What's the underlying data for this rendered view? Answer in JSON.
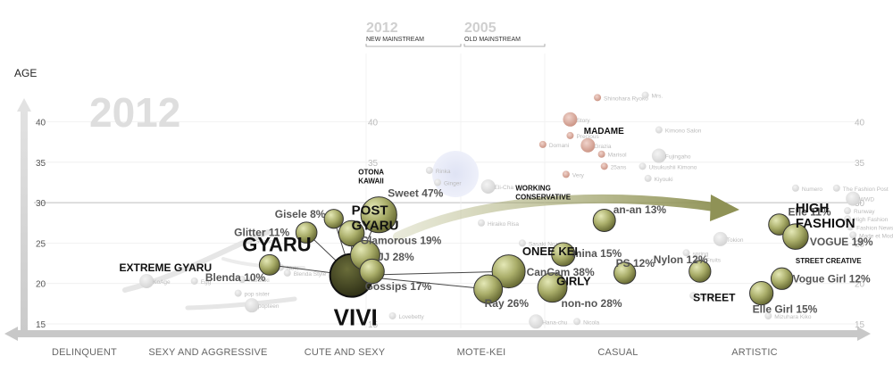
{
  "chart_data": {
    "type": "scatter",
    "y_axis": {
      "label": "AGE",
      "ticks": [
        15,
        20,
        25,
        30,
        35,
        40
      ]
    },
    "x_categories": [
      "DELINQUENT",
      "SEXY AND AGGRESSIVE",
      "CUTE AND SEXY",
      "MOTE-KEI",
      "CASUAL",
      "ARTISTIC"
    ],
    "year_watermark": "2012",
    "columns": [
      {
        "year": "2012",
        "label": "NEW MAINSTREAM"
      },
      {
        "year": "2005",
        "label": "OLD MAINSTREAM"
      }
    ],
    "segments": [
      {
        "label": "GYARU",
        "x": 1.25,
        "y": 24
      },
      {
        "label": "EXTREME GYARU",
        "x": 0.35,
        "y": 21.5
      },
      {
        "label": "POST GYARU",
        "x": 2.05,
        "y": 28.5
      },
      {
        "label": "OTONA KAWAII",
        "x": 2.1,
        "y": 33.5
      },
      {
        "label": "WORKING CONSERVATIVE",
        "x": 3.25,
        "y": 31.5
      },
      {
        "label": "ONEE KEI",
        "x": 3.3,
        "y": 23.5
      },
      {
        "label": "GIRLY",
        "x": 3.55,
        "y": 19.8
      },
      {
        "label": "MADAME",
        "x": 3.75,
        "y": 38.5
      },
      {
        "label": "STREET",
        "x": 4.55,
        "y": 17.8
      },
      {
        "label": "STREET CREATIVE",
        "x": 5.3,
        "y": 22.5
      },
      {
        "label": "HIGH FASHION",
        "x": 5.3,
        "y": 28.8
      }
    ],
    "magazines": [
      {
        "name": "VIVI",
        "share": 35,
        "x": 2.05,
        "y": 21,
        "text": "VIVI"
      },
      {
        "name": "Sweet",
        "share": 47,
        "x": 2.25,
        "y": 28.5,
        "text": "Sweet 47%"
      },
      {
        "name": "Gisele",
        "share": 8,
        "x": 1.92,
        "y": 28.0,
        "text": "Gisele 8%"
      },
      {
        "name": "Glitter",
        "share": 11,
        "x": 1.72,
        "y": 26.3,
        "text": "Glitter 11%"
      },
      {
        "name": "Glamorous",
        "share": 19,
        "x": 2.05,
        "y": 26.2,
        "text": "Glamorous 19%"
      },
      {
        "name": "JJ",
        "share": 28,
        "x": 2.15,
        "y": 23.5,
        "text": "JJ 28%"
      },
      {
        "name": "Gossips",
        "share": 17,
        "x": 2.2,
        "y": 21.5,
        "text": "Gossips 17%"
      },
      {
        "name": "Blenda",
        "share": 10,
        "x": 1.45,
        "y": 22.3,
        "text": "Blenda 10%"
      },
      {
        "name": "CanCam",
        "share": 38,
        "x": 3.2,
        "y": 21.5,
        "text": "CanCam 38%"
      },
      {
        "name": "Ray",
        "share": 26,
        "x": 3.05,
        "y": 19.3,
        "text": "Ray 26%"
      },
      {
        "name": "non-no",
        "share": 28,
        "x": 3.52,
        "y": 19.5,
        "text": "non-no 28%"
      },
      {
        "name": "mina",
        "share": 15,
        "x": 3.6,
        "y": 23.6,
        "text": "mina 15%"
      },
      {
        "name": "an-an",
        "share": 13,
        "x": 3.9,
        "y": 27.8,
        "text": "an-an 13%"
      },
      {
        "name": "PS",
        "share": 12,
        "x": 4.05,
        "y": 21.3,
        "text": "PS 12%"
      },
      {
        "name": "Nylon",
        "share": 12,
        "x": 4.6,
        "y": 21.5,
        "text": "Nylon 12%"
      },
      {
        "name": "Elle",
        "share": 11,
        "x": 5.18,
        "y": 27.3,
        "text": "Elle 11%"
      },
      {
        "name": "VOGUE",
        "share": 19,
        "x": 5.3,
        "y": 25.8,
        "text": "VOGUE 19%"
      },
      {
        "name": "Vogue Girl",
        "share": 12,
        "x": 5.2,
        "y": 20.6,
        "text": "Vogue Girl 12%"
      },
      {
        "name": "Elle Girl",
        "share": 15,
        "x": 5.05,
        "y": 18.8,
        "text": "Elle Girl 15%"
      }
    ],
    "faded_magazines": [
      {
        "name": "KoAge",
        "x": 0.55,
        "y": 20.3
      },
      {
        "name": "Egg",
        "x": 0.9,
        "y": 20.3
      },
      {
        "name": "SCawaii",
        "x": 1.3,
        "y": 25.3
      },
      {
        "name": "Ranzuki",
        "x": 1.25,
        "y": 20.5
      },
      {
        "name": "pop sister",
        "x": 1.22,
        "y": 18.8
      },
      {
        "name": "popteen",
        "x": 1.32,
        "y": 17.3
      },
      {
        "name": "Nuts",
        "x": 1.53,
        "y": 22.0
      },
      {
        "name": "Blenda Style",
        "x": 1.58,
        "y": 21.3
      },
      {
        "name": "Rinka",
        "x": 2.62,
        "y": 34.0
      },
      {
        "name": "Ginger",
        "x": 2.68,
        "y": 32.5
      },
      {
        "name": "Story",
        "x": 3.65,
        "y": 40.3
      },
      {
        "name": "Shinohara Ryoko",
        "x": 3.85,
        "y": 43.0
      },
      {
        "name": "Mrs.",
        "x": 4.2,
        "y": 43.3
      },
      {
        "name": "Precious",
        "x": 3.65,
        "y": 38.3
      },
      {
        "name": "Domani",
        "x": 3.45,
        "y": 37.2
      },
      {
        "name": "Grazia",
        "x": 3.78,
        "y": 37.1
      },
      {
        "name": "Marisol",
        "x": 3.88,
        "y": 36.0
      },
      {
        "name": "25ans",
        "x": 3.9,
        "y": 34.5
      },
      {
        "name": "Very",
        "x": 3.62,
        "y": 33.5
      },
      {
        "name": "Kimono Salon",
        "x": 4.3,
        "y": 39.0
      },
      {
        "name": "Fujingaho",
        "x": 4.3,
        "y": 35.8
      },
      {
        "name": "Utsukushii Kimono",
        "x": 4.18,
        "y": 34.5
      },
      {
        "name": "Kiyouki",
        "x": 4.22,
        "y": 33.0
      },
      {
        "name": "Numero",
        "x": 5.3,
        "y": 31.8
      },
      {
        "name": "The Fashion Post",
        "x": 5.6,
        "y": 31.8
      },
      {
        "name": "WWD",
        "x": 5.72,
        "y": 30.5
      },
      {
        "name": "Runway",
        "x": 5.68,
        "y": 29.0
      },
      {
        "name": "High Fashion",
        "x": 5.68,
        "y": 28.0
      },
      {
        "name": "Fashion News",
        "x": 5.7,
        "y": 27.0
      },
      {
        "name": "Mode et Mode",
        "x": 5.72,
        "y": 26.0
      },
      {
        "name": "Eli-Cha",
        "x": 3.05,
        "y": 32.0
      },
      {
        "name": "Hiraiko Risa",
        "x": 3.0,
        "y": 27.5
      },
      {
        "name": "Sasaki Nozomi",
        "x": 3.3,
        "y": 25.0
      },
      {
        "name": "Mizuhara Kiko",
        "x": 5.1,
        "y": 16.0
      },
      {
        "name": "Lovebetty",
        "x": 2.35,
        "y": 16.0
      },
      {
        "name": "Hana-chu",
        "x": 3.4,
        "y": 15.3
      },
      {
        "name": "Nicola",
        "x": 3.7,
        "y": 15.3
      },
      {
        "name": "Zipper",
        "x": 4.55,
        "y": 18.5
      },
      {
        "name": "spring",
        "x": 4.5,
        "y": 23.8
      },
      {
        "name": "Fruits",
        "x": 4.6,
        "y": 23.0
      },
      {
        "name": "Tokion",
        "x": 4.75,
        "y": 25.5
      }
    ]
  }
}
